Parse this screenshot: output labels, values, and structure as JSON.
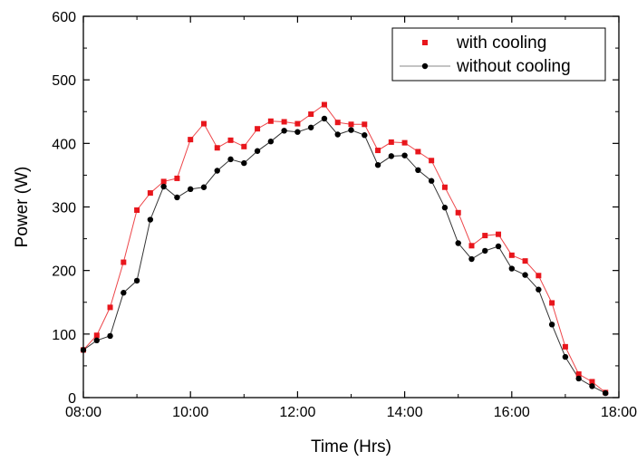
{
  "chart_data": {
    "type": "line",
    "title": "",
    "xlabel": "Time (Hrs)",
    "ylabel": "Power (W)",
    "x_unit": "hours",
    "xlim": [
      8,
      18
    ],
    "ylim": [
      0,
      600
    ],
    "x_ticks": [
      "08:00",
      "10:00",
      "12:00",
      "14:00",
      "16:00",
      "18:00"
    ],
    "y_ticks": [
      "0",
      "100",
      "200",
      "300",
      "400",
      "500",
      "600"
    ],
    "grid": false,
    "legend_position": "top-right",
    "x": [
      8.0,
      8.25,
      8.5,
      8.75,
      9.0,
      9.25,
      9.5,
      9.75,
      10.0,
      10.25,
      10.5,
      10.75,
      11.0,
      11.25,
      11.5,
      11.75,
      12.0,
      12.25,
      12.5,
      12.75,
      13.0,
      13.25,
      13.5,
      13.75,
      14.0,
      14.25,
      14.5,
      14.75,
      15.0,
      15.25,
      15.5,
      15.75,
      16.0,
      16.25,
      16.5,
      16.75,
      17.0,
      17.25,
      17.5,
      17.75
    ],
    "series": [
      {
        "name": "with cooling",
        "color": "#e8161c",
        "marker": "square",
        "values": [
          75,
          98,
          142,
          213,
          295,
          322,
          340,
          345,
          406,
          431,
          393,
          405,
          395,
          423,
          435,
          434,
          431,
          446,
          461,
          433,
          430,
          430,
          389,
          402,
          401,
          387,
          373,
          331,
          291,
          239,
          255,
          257,
          224,
          215,
          192,
          149,
          80,
          37,
          25,
          8
        ]
      },
      {
        "name": "without cooling",
        "color": "#000000",
        "marker": "circle",
        "values": [
          75,
          90,
          97,
          165,
          184,
          280,
          332,
          315,
          328,
          331,
          357,
          375,
          369,
          388,
          403,
          420,
          418,
          425,
          439,
          414,
          421,
          413,
          366,
          380,
          381,
          358,
          341,
          299,
          243,
          218,
          231,
          238,
          203,
          193,
          170,
          115,
          64,
          30,
          18,
          7
        ]
      }
    ]
  }
}
